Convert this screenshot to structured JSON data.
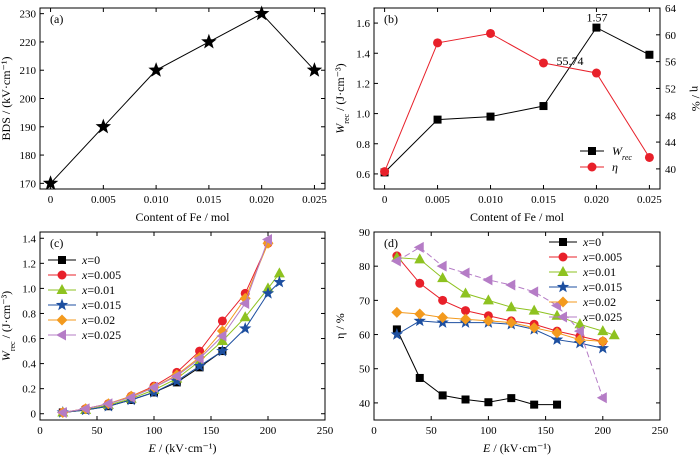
{
  "chart_data": [
    {
      "id": "a",
      "type": "line",
      "panel_label": "(a)",
      "xlabel": "Content of Fe / mol",
      "ylabel": "BDS / (kV·cm⁻¹)",
      "xlim": [
        -0.001,
        0.026
      ],
      "ylim": [
        168,
        232
      ],
      "xticks": [
        0,
        0.005,
        0.01,
        0.015,
        0.02,
        0.025
      ],
      "xtick_labels": [
        "0",
        "0.005",
        "0.010",
        "0.015",
        "0.020",
        "0.025"
      ],
      "yticks": [
        170,
        180,
        190,
        200,
        210,
        220,
        230
      ],
      "series": [
        {
          "x": [
            0,
            0.005,
            0.01,
            0.015,
            0.02,
            0.025
          ],
          "y": [
            170,
            190,
            210,
            220,
            230,
            210
          ],
          "marker": "star",
          "color": "#000000"
        }
      ]
    },
    {
      "id": "b",
      "type": "line",
      "panel_label": "(b)",
      "xlabel": "Content of Fe / mol",
      "ylabel": "W_rec / (J·cm⁻³)",
      "ylabel_right": "η / %",
      "xlim": [
        -0.001,
        0.026
      ],
      "ylim": [
        0.5,
        1.7
      ],
      "ylim_right": [
        37,
        64
      ],
      "xticks": [
        0,
        0.005,
        0.01,
        0.015,
        0.02,
        0.025
      ],
      "xtick_labels": [
        "0",
        "0.005",
        "0.010",
        "0.015",
        "0.020",
        "0.025"
      ],
      "yticks": [
        0.6,
        0.8,
        1.0,
        1.2,
        1.4,
        1.6
      ],
      "ytick_labels": [
        "0.6",
        "0.8",
        "1.0",
        "1.2",
        "1.4",
        "1.6"
      ],
      "yticks_right": [
        40,
        44,
        48,
        52,
        56,
        60,
        64
      ],
      "annotations": [
        "1.57",
        "55.74"
      ],
      "legend_position": "bottom-right",
      "series": [
        {
          "name": "W",
          "name_sub": "rec",
          "axis": "left",
          "x": [
            0,
            0.005,
            0.01,
            0.015,
            0.02,
            0.025
          ],
          "y": [
            0.61,
            0.96,
            0.98,
            1.05,
            1.57,
            1.39
          ],
          "marker": "square",
          "color": "#000000"
        },
        {
          "name": "η",
          "axis": "right",
          "x": [
            0,
            0.005,
            0.01,
            0.015,
            0.02,
            0.025
          ],
          "y": [
            39.6,
            58.8,
            60.2,
            55.8,
            54.3,
            41.7
          ],
          "marker": "circle",
          "color": "#e8202a"
        }
      ]
    },
    {
      "id": "c",
      "type": "line",
      "panel_label": "(c)",
      "xlabel": "E / (kV·cm⁻¹)",
      "ylabel": "W_rec / (J·cm⁻³)",
      "xlim": [
        0,
        250
      ],
      "ylim": [
        -0.05,
        1.45
      ],
      "xticks": [
        0,
        50,
        100,
        150,
        200,
        250
      ],
      "yticks": [
        0,
        0.2,
        0.4,
        0.6,
        0.8,
        1.0,
        1.2,
        1.4
      ],
      "ytick_labels": [
        "0",
        "0.2",
        "0.4",
        "0.6",
        "0.8",
        "1.0",
        "1.2",
        "1.4"
      ],
      "legend_position": "top-left",
      "series": [
        {
          "name": "x=0",
          "marker": "square",
          "color": "#000000",
          "x": [
            20,
            40,
            60,
            80,
            100,
            120,
            140,
            160
          ],
          "y": [
            0.01,
            0.03,
            0.06,
            0.11,
            0.17,
            0.25,
            0.37,
            0.5
          ]
        },
        {
          "name": "x=0.005",
          "marker": "circle",
          "color": "#e8202a",
          "x": [
            20,
            40,
            60,
            80,
            100,
            120,
            140,
            160,
            180,
            200
          ],
          "y": [
            0.01,
            0.04,
            0.08,
            0.14,
            0.22,
            0.33,
            0.5,
            0.74,
            0.96,
            1.36
          ]
        },
        {
          "name": "x=0.01",
          "marker": "triangle-up",
          "color": "#8ec220",
          "x": [
            20,
            40,
            60,
            80,
            100,
            120,
            140,
            160,
            180,
            200,
            210
          ],
          "y": [
            0.01,
            0.03,
            0.07,
            0.12,
            0.19,
            0.28,
            0.42,
            0.58,
            0.77,
            1.0,
            1.12
          ]
        },
        {
          "name": "x=0.015",
          "marker": "star",
          "color": "#1d4fa0",
          "x": [
            20,
            40,
            60,
            80,
            100,
            120,
            140,
            160,
            180,
            200,
            210
          ],
          "y": [
            0.01,
            0.03,
            0.06,
            0.11,
            0.17,
            0.26,
            0.38,
            0.5,
            0.68,
            0.96,
            1.05
          ]
        },
        {
          "name": "x=0.02",
          "marker": "diamond",
          "color": "#f39a1e",
          "x": [
            20,
            40,
            60,
            80,
            100,
            120,
            140,
            160,
            180,
            200
          ],
          "y": [
            0.01,
            0.04,
            0.08,
            0.14,
            0.21,
            0.31,
            0.45,
            0.66,
            0.92,
            1.36
          ]
        },
        {
          "name": "x=0.025",
          "marker": "triangle-left",
          "color": "#b57cc6",
          "x": [
            20,
            40,
            60,
            80,
            100,
            120,
            140,
            160,
            180,
            200
          ],
          "y": [
            0.01,
            0.04,
            0.08,
            0.13,
            0.21,
            0.3,
            0.44,
            0.62,
            0.88,
            1.39
          ]
        }
      ]
    },
    {
      "id": "d",
      "type": "line",
      "panel_label": "(d)",
      "xlabel": "E / (kV·cm⁻¹)",
      "ylabel": "η / %",
      "xlim": [
        0,
        250
      ],
      "ylim": [
        35,
        90
      ],
      "xticks": [
        0,
        50,
        100,
        150,
        200,
        250
      ],
      "yticks": [
        40,
        50,
        60,
        70,
        80,
        90
      ],
      "legend_position": "top-right",
      "series": [
        {
          "name": "x=0",
          "marker": "square",
          "color": "#000000",
          "x": [
            20,
            40,
            60,
            80,
            100,
            120,
            140,
            160
          ],
          "y": [
            61.5,
            47.3,
            42.2,
            41.0,
            40.2,
            41.4,
            39.5,
            39.5
          ]
        },
        {
          "name": "x=0.005",
          "marker": "circle",
          "color": "#e8202a",
          "x": [
            20,
            40,
            60,
            80,
            100,
            120,
            140,
            160,
            180,
            200
          ],
          "y": [
            83.0,
            75.0,
            70.0,
            67.0,
            65.5,
            64.0,
            63.0,
            61.0,
            59.5,
            58.0
          ]
        },
        {
          "name": "x=0.01",
          "marker": "triangle-up",
          "color": "#8ec220",
          "x": [
            20,
            40,
            60,
            80,
            100,
            120,
            140,
            160,
            180,
            200,
            210
          ],
          "y": [
            82.5,
            82.0,
            76.5,
            72.0,
            70.0,
            68.0,
            67.0,
            65.5,
            63.0,
            61.0,
            59.8
          ]
        },
        {
          "name": "x=0.015",
          "marker": "star",
          "color": "#1d4fa0",
          "x": [
            20,
            40,
            60,
            80,
            100,
            120,
            140,
            160,
            180,
            200
          ],
          "y": [
            60.0,
            64.0,
            63.5,
            63.5,
            63.5,
            63.0,
            61.5,
            58.5,
            57.5,
            56.0
          ]
        },
        {
          "name": "x=0.02",
          "marker": "diamond",
          "color": "#f39a1e",
          "x": [
            20,
            40,
            60,
            80,
            100,
            120,
            140,
            160,
            180,
            200
          ],
          "y": [
            66.5,
            66.0,
            65.0,
            64.5,
            64.0,
            63.5,
            62.0,
            60.5,
            58.5,
            58.0
          ]
        },
        {
          "name": "x=0.025",
          "marker": "triangle-left",
          "color": "#b57cc6",
          "x": [
            20,
            40,
            60,
            80,
            100,
            120,
            140,
            160,
            180,
            200
          ],
          "y": [
            81.5,
            85.5,
            80.0,
            78.0,
            76.0,
            74.5,
            72.5,
            68.5,
            61.0,
            41.5
          ]
        }
      ]
    }
  ]
}
